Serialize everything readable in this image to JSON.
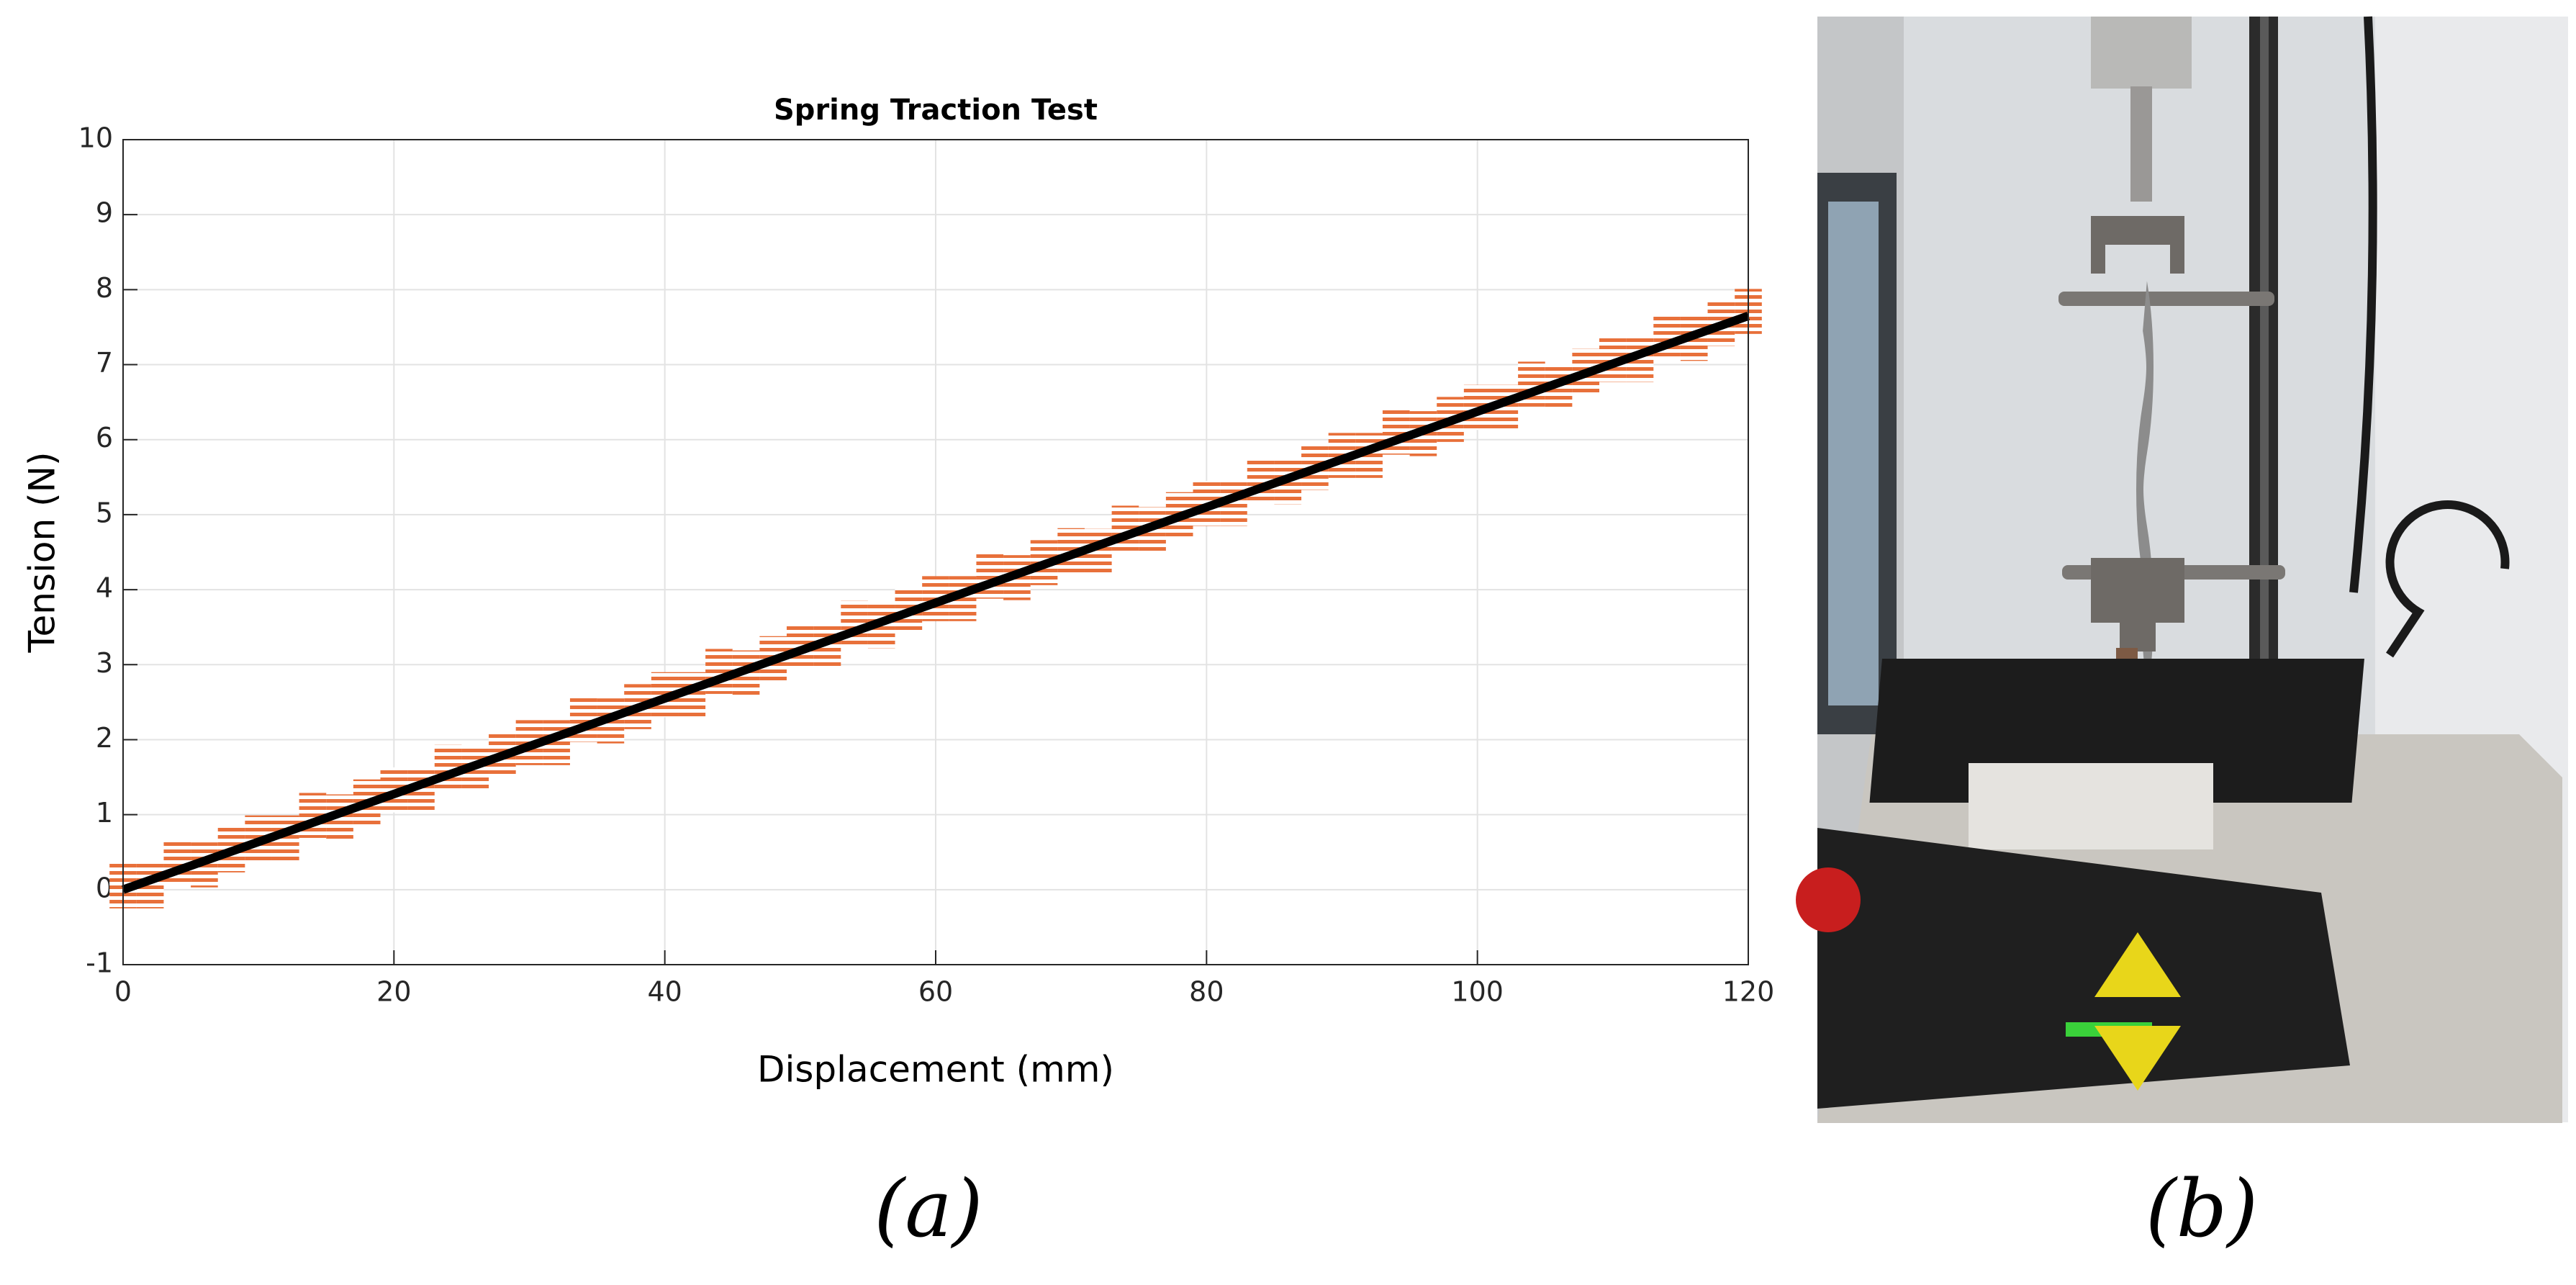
{
  "chart_data": {
    "type": "scatter",
    "title": "Spring Traction Test",
    "x_label": "Displacement (mm)",
    "y_label": "Tension (N)",
    "xlim": [
      0,
      120
    ],
    "ylim": [
      -1,
      10
    ],
    "xticks": [
      0,
      20,
      40,
      60,
      80,
      100,
      120
    ],
    "yticks": [
      -1,
      0,
      1,
      2,
      3,
      4,
      5,
      6,
      7,
      8,
      9,
      10
    ],
    "grid": true,
    "series": [
      {
        "color": "#e8703a",
        "style": "band",
        "x": [
          0,
          2,
          4,
          6,
          8,
          10,
          12,
          14,
          16,
          18,
          20,
          22,
          24,
          26,
          28,
          30,
          32,
          34,
          36,
          38,
          40,
          42,
          44,
          46,
          48,
          50,
          52,
          54,
          56,
          58,
          60,
          62,
          64,
          66,
          68,
          70,
          72,
          74,
          76,
          78,
          80,
          82,
          84,
          86,
          88,
          90,
          92,
          94,
          96,
          98,
          100,
          102,
          104,
          106,
          108,
          110,
          112,
          114,
          116,
          118,
          120
        ],
        "values": [
          0.05,
          0.05,
          0.36,
          0.33,
          0.53,
          0.69,
          0.69,
          0.99,
          0.97,
          1.17,
          1.33,
          1.32,
          1.63,
          1.61,
          1.81,
          1.96,
          1.96,
          2.27,
          2.25,
          2.44,
          2.6,
          2.6,
          2.91,
          2.89,
          3.08,
          3.24,
          3.24,
          3.55,
          3.52,
          3.72,
          3.88,
          3.88,
          4.18,
          4.16,
          4.36,
          4.52,
          4.51,
          4.82,
          4.8,
          5,
          5.15,
          5.15,
          5.46,
          5.44,
          5.63,
          5.79,
          5.79,
          6.1,
          6.08,
          6.27,
          6.43,
          6.43,
          6.74,
          6.71,
          6.91,
          7.07,
          7.07,
          7.37,
          7.35,
          7.55,
          7.71
        ]
      },
      {
        "color": "#000000",
        "style": "line",
        "x": [
          0,
          120
        ],
        "values": [
          0,
          7.65
        ]
      }
    ]
  },
  "panels": {
    "a": "(a)",
    "b": "(b)"
  }
}
